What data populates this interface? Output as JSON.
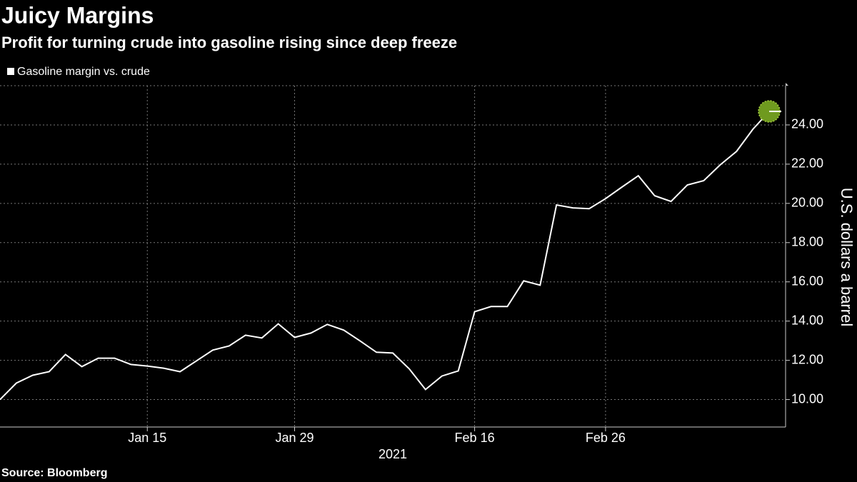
{
  "chart_data": {
    "type": "line",
    "title": "Juicy Margins",
    "subtitle": "Profit for turning crude into gasoline rising since deep freeze",
    "y_label": "U.S. dollars a barrel",
    "x_label": "2021",
    "source": "Source: Bloomberg",
    "categories": [
      null,
      null,
      null,
      null,
      null,
      null,
      null,
      null,
      null,
      "Jan 15",
      null,
      null,
      null,
      null,
      null,
      null,
      null,
      null,
      "Jan 29",
      null,
      null,
      null,
      null,
      null,
      null,
      null,
      null,
      null,
      null,
      "Feb 16",
      null,
      null,
      null,
      null,
      null,
      null,
      null,
      "Feb 26",
      null,
      null,
      null,
      null,
      null,
      null,
      null,
      null,
      null,
      null
    ],
    "series": [
      {
        "name": "Gasoline margin vs. crude",
        "color": "#ffffff",
        "values": [
          10.0,
          10.84,
          11.24,
          11.42,
          12.3,
          11.68,
          12.11,
          12.11,
          11.79,
          11.71,
          11.6,
          11.42,
          11.97,
          12.52,
          12.73,
          13.28,
          13.14,
          13.86,
          13.17,
          13.39,
          13.83,
          13.54,
          12.99,
          12.41,
          12.37,
          11.57,
          10.51,
          11.2,
          11.46,
          14.48,
          14.74,
          14.74,
          16.05,
          15.83,
          19.92,
          19.77,
          19.73,
          20.24,
          20.83,
          21.41,
          20.39,
          20.1,
          20.94,
          21.16,
          21.96,
          22.65,
          23.78,
          24.69
        ]
      }
    ],
    "ylim": [
      8.6,
      26.0
    ],
    "yticks": [
      {
        "value": 10,
        "label": "10.00"
      },
      {
        "value": 12,
        "label": "12.00"
      },
      {
        "value": 14,
        "label": "14.00"
      },
      {
        "value": 16,
        "label": "16.00"
      },
      {
        "value": 18,
        "label": "18.00"
      },
      {
        "value": 20,
        "label": "20.00"
      },
      {
        "value": 22,
        "label": "22.00"
      },
      {
        "value": 24,
        "label": "24.00"
      }
    ],
    "grid": true,
    "legend": "top-left",
    "highlight_color": "#6f9a1f"
  }
}
